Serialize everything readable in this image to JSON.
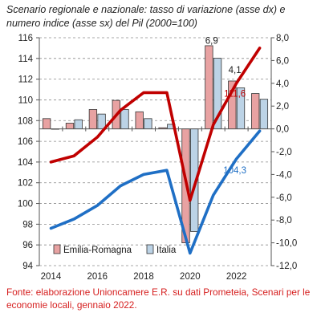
{
  "chart_data": {
    "type": "bar+line",
    "title": "Scenario regionale e nazionale: tasso di variazione (asse dx) e numero indice (asse sx) del Pil (2000=100)",
    "left_axis": {
      "min": 94,
      "max": 116,
      "step": 2,
      "ticks": [
        "94",
        "96",
        "98",
        "100",
        "102",
        "104",
        "106",
        "108",
        "110",
        "112",
        "114",
        "116"
      ]
    },
    "right_axis": {
      "min": -12,
      "max": 8,
      "step": 2,
      "ticks": [
        "-12,0",
        "-10,0",
        "-8,0",
        "-6,0",
        "-4,0",
        "-2,0",
        "0,0",
        "2,0",
        "4,0",
        "6,0",
        "8,0"
      ]
    },
    "x_axis": {
      "tick_labels": [
        "2014",
        "2016",
        "2018",
        "2020",
        "2022"
      ]
    },
    "years": [
      2014,
      2015,
      2016,
      2017,
      2018,
      2019,
      2020,
      2021,
      2022,
      2023
    ],
    "bars": {
      "axis": "right",
      "series": [
        {
          "name": "Emilia-Romagna",
          "color": "#e8a2a2",
          "values": [
            0.9,
            0.5,
            1.7,
            2.5,
            1.5,
            0.1,
            -10.0,
            7.3,
            4.2,
            3.1
          ]
        },
        {
          "name": "Italia",
          "color": "#bcd3e6",
          "values": [
            0.0,
            0.8,
            1.3,
            1.7,
            0.9,
            0.4,
            -9.0,
            6.2,
            3.6,
            2.6
          ]
        }
      ]
    },
    "lines": {
      "axis": "left",
      "series": [
        {
          "name": "Emilia-Romagna",
          "color": "#c00000",
          "values": [
            104.0,
            104.6,
            106.4,
            109.0,
            110.7,
            110.7,
            100.3,
            107.6,
            111.6,
            115.0
          ]
        },
        {
          "name": "Italia",
          "color": "#1f6fc5",
          "values": [
            97.6,
            98.5,
            99.8,
            101.7,
            102.8,
            103.2,
            95.2,
            100.8,
            104.3,
            107.0
          ]
        }
      ]
    },
    "annotations": [
      {
        "text": "6,9",
        "year": 2021,
        "left_value": 115.4,
        "color": "#1a1a1a"
      },
      {
        "text": "4,1",
        "year": 2022,
        "left_value": 112.6,
        "color": "#1a1a1a"
      },
      {
        "text": "111,6",
        "year": 2022,
        "left_value": 110.3,
        "color": "#c00000"
      },
      {
        "text": "104,3",
        "year": 2022,
        "left_value": 102.9,
        "color": "#1f6fc5"
      }
    ],
    "legend": {
      "position": "bottom-left",
      "items": [
        "Emilia-Romagna",
        "Italia"
      ]
    }
  },
  "footer": "Fonte: elaborazione Unioncamere E.R. su dati Prometeia, Scenari per le economie locali, gennaio 2022."
}
